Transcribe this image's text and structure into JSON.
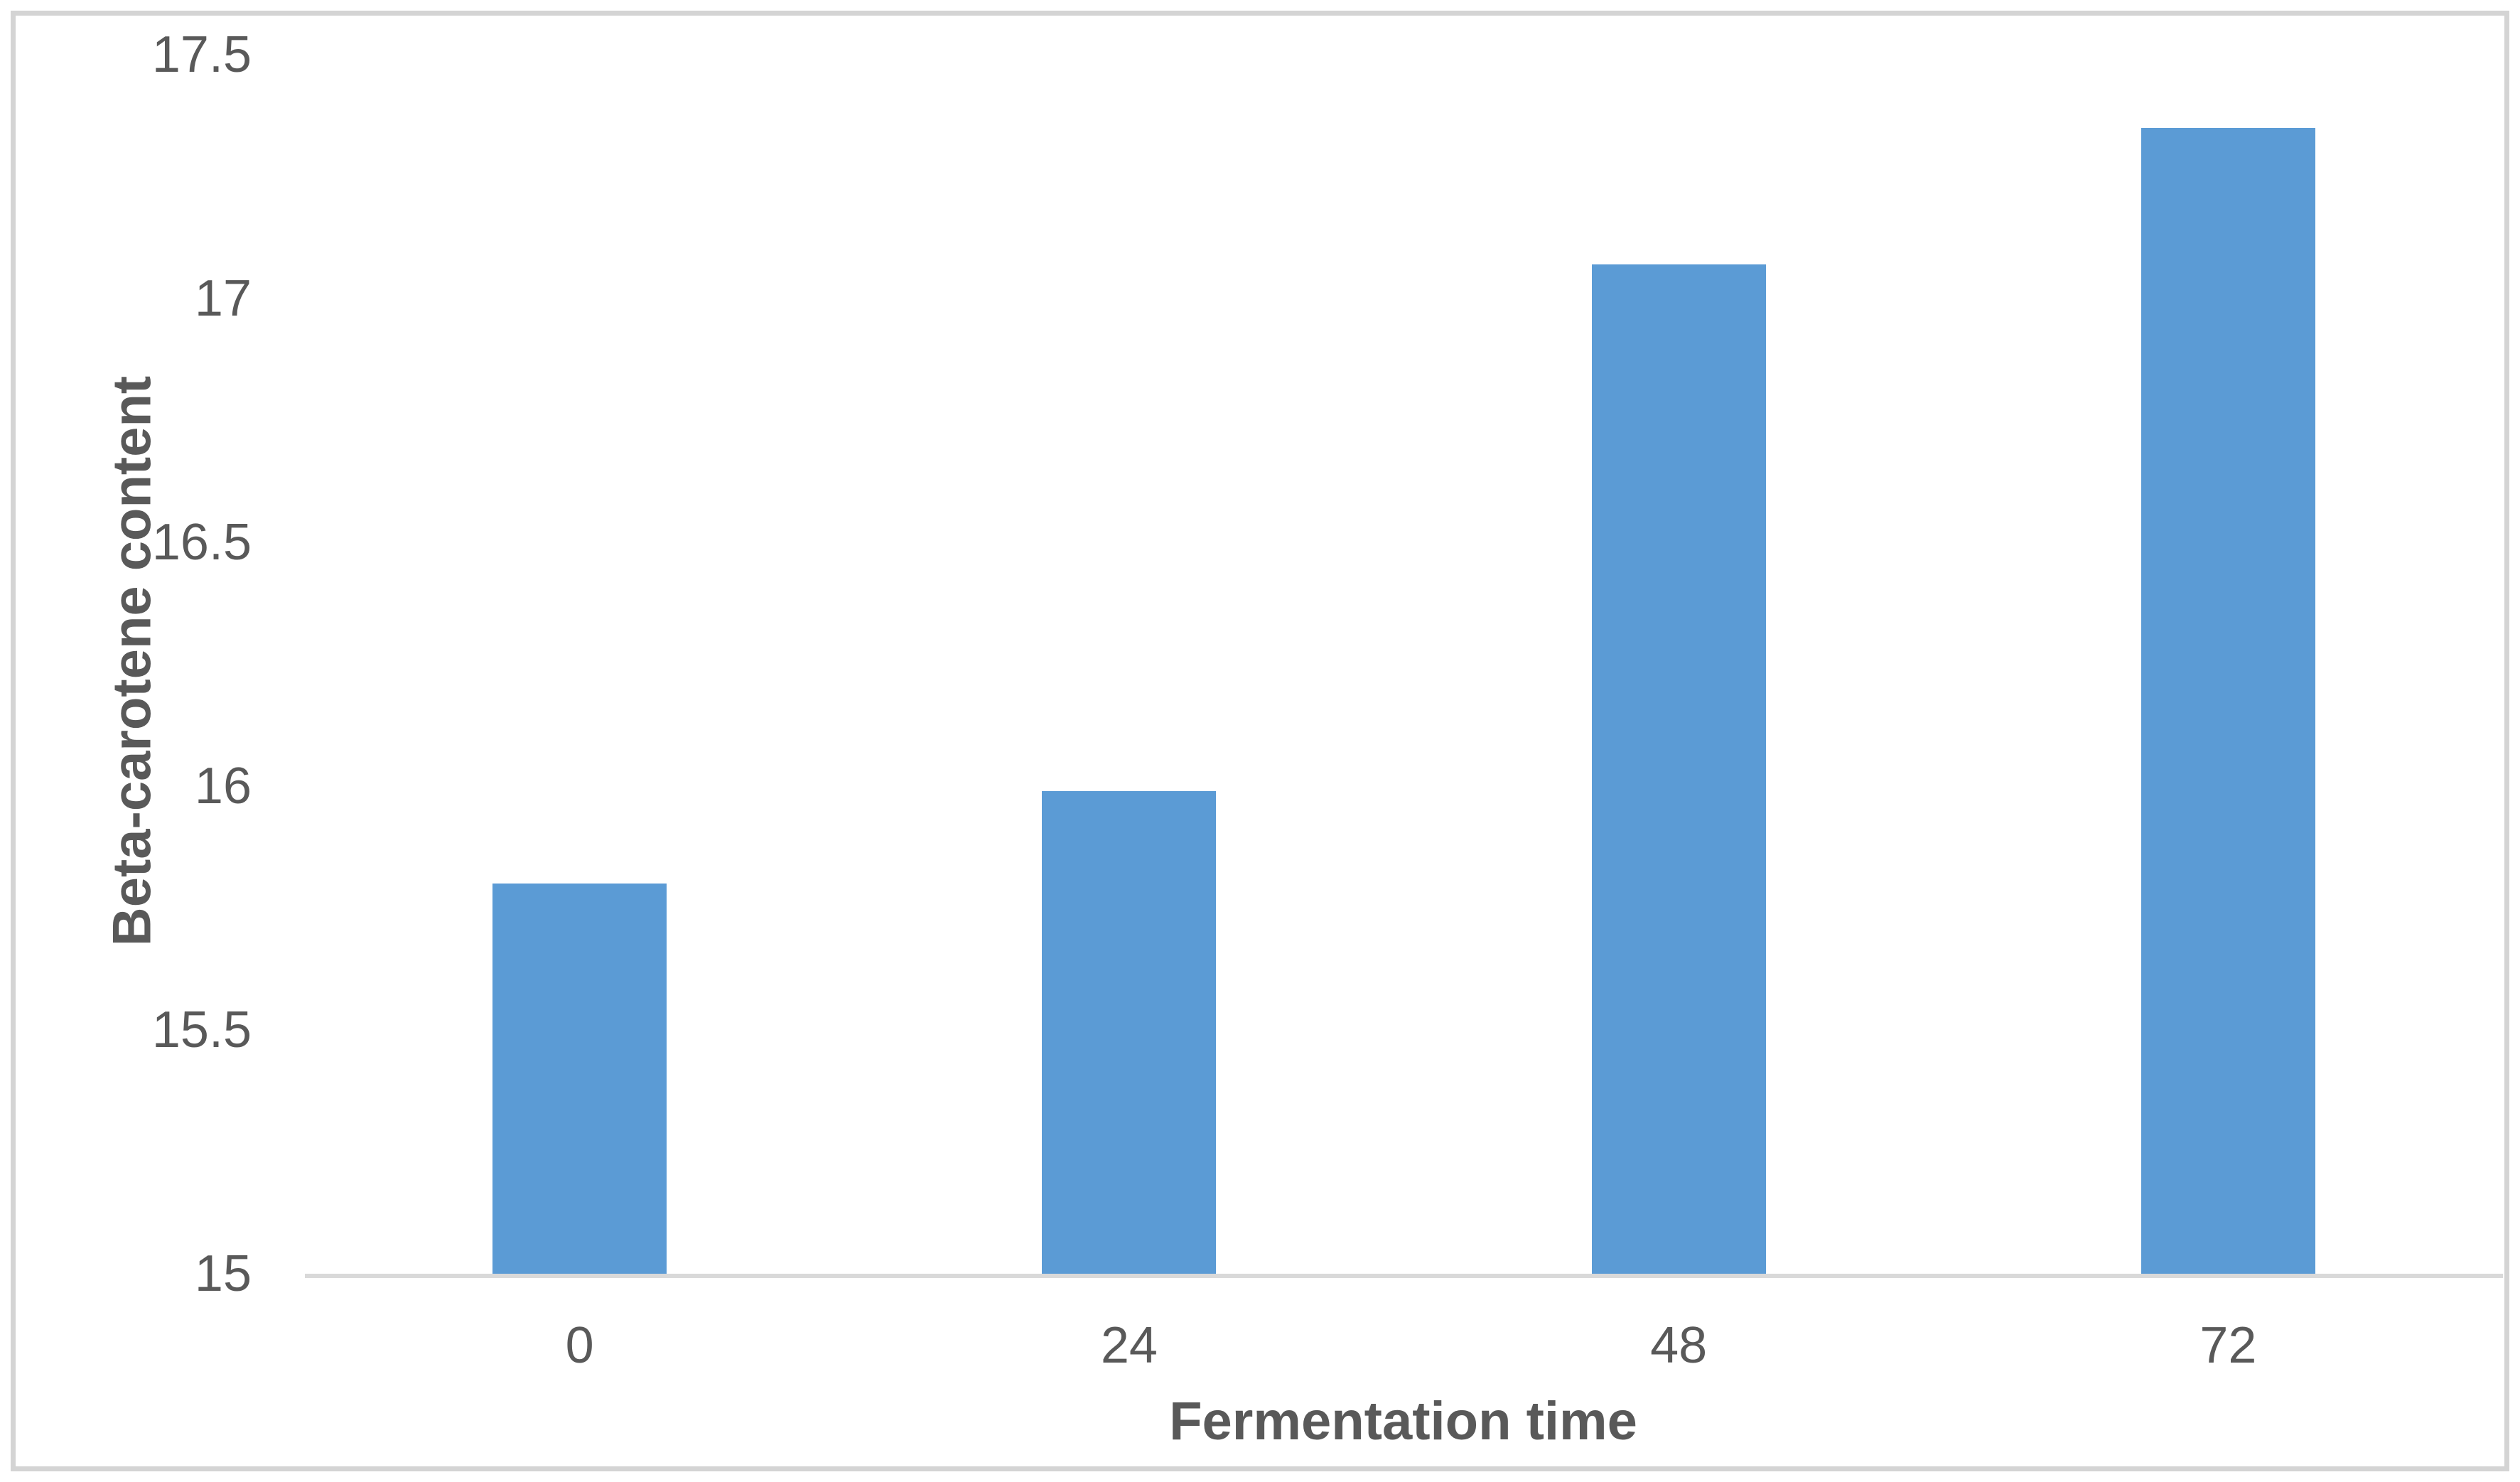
{
  "figure": {
    "background": "#ffffff",
    "border_color": "#d4d4d4"
  },
  "chart_data": {
    "type": "bar",
    "title": "",
    "categories": [
      "0",
      "24",
      "48",
      "72"
    ],
    "values": [
      15.8,
      15.99,
      17.07,
      17.35
    ],
    "xlabel": "Fermentation time",
    "ylabel": "Beta-carotene content",
    "ylim": [
      15,
      17.5
    ],
    "ytick_step": 0.5,
    "yticks": [
      "15",
      "15.5",
      "16",
      "16.5",
      "17",
      "17.5"
    ],
    "bar_color": "#5b9bd5",
    "axis_line_color": "#d9d9d9",
    "text_color": "#595959",
    "grid": "off",
    "legend": "none",
    "series_count": 1
  }
}
